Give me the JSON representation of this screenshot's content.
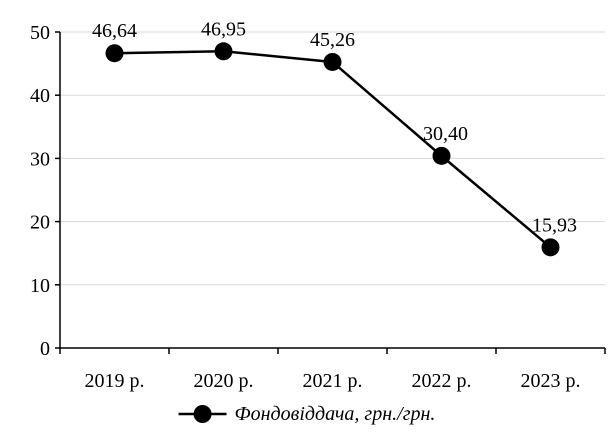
{
  "chart_data": {
    "type": "line",
    "categories": [
      "2019 р.",
      "2020 р.",
      "2021 р.",
      "2022 р.",
      "2023 р."
    ],
    "series": [
      {
        "name": "Фондовіддача, грн./грн.",
        "values": [
          46.64,
          46.95,
          45.26,
          30.4,
          15.93
        ],
        "labels": [
          "46,64",
          "46,95",
          "45,26",
          "30,40",
          "15,93"
        ],
        "color": "#000000"
      }
    ],
    "ylim": [
      0,
      50
    ],
    "yticks": [
      0,
      10,
      20,
      30,
      40,
      50
    ],
    "grid": true,
    "legend_position": "bottom"
  }
}
